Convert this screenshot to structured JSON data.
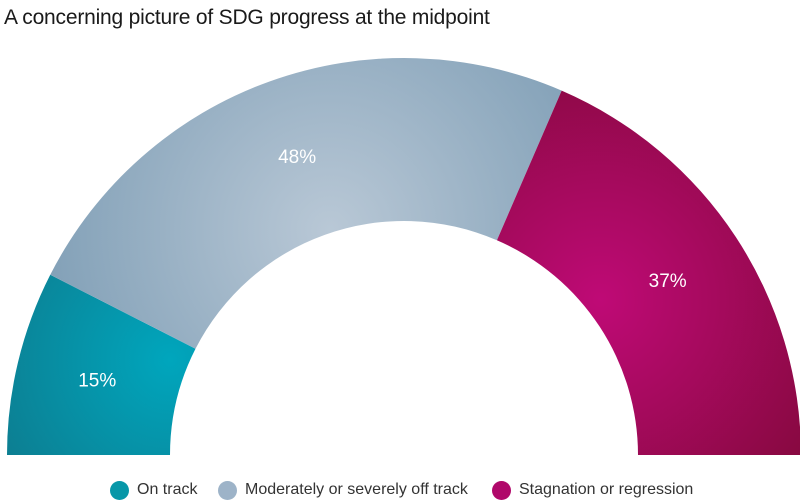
{
  "chart_data": {
    "type": "pie",
    "title": "A concerning picture of SDG progress at the midpoint",
    "variant": "semicircle-donut",
    "categories": [
      "On track",
      "Moderately or severely off track",
      "Stagnation or regression"
    ],
    "values": [
      15,
      48,
      37
    ],
    "labels": [
      "15%",
      "48%",
      "37%"
    ],
    "colors": [
      "#0797a8",
      "#9db3c8",
      "#b0086a"
    ],
    "legend": "bottom"
  }
}
